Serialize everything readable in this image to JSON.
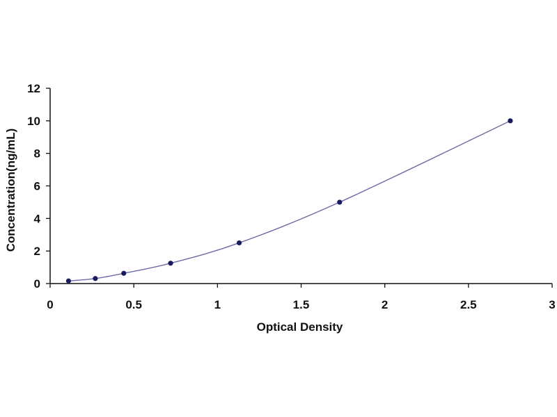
{
  "chart_data": {
    "type": "scatter",
    "title": "",
    "xlabel": "Optical Density",
    "ylabel": "Concentration(ng/mL)",
    "xlim": [
      0,
      3
    ],
    "ylim": [
      0,
      12
    ],
    "x_ticks": [
      "0",
      "0.5",
      "1",
      "1.5",
      "2",
      "2.5",
      "3"
    ],
    "y_ticks": [
      "0",
      "2",
      "4",
      "6",
      "8",
      "10",
      "12"
    ],
    "grid": false,
    "legend": "none",
    "series": [
      {
        "points": [
          {
            "x": 0.11,
            "y": 0.16
          },
          {
            "x": 0.27,
            "y": 0.31
          },
          {
            "x": 0.44,
            "y": 0.63
          },
          {
            "x": 0.72,
            "y": 1.25
          },
          {
            "x": 1.13,
            "y": 2.5
          },
          {
            "x": 1.73,
            "y": 5.0
          },
          {
            "x": 2.75,
            "y": 10.0
          }
        ],
        "fit": "smooth curve",
        "marker_color": "#1a1a5e",
        "line_color": "#6b6ba8"
      }
    ],
    "axis_color": "#111111"
  }
}
